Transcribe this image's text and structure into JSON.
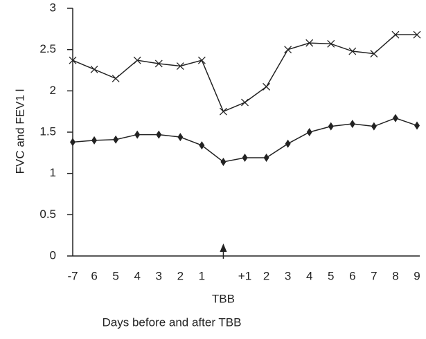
{
  "chart_data": {
    "type": "line",
    "xlabel": "Days before and after TBB",
    "ylabel": "FVC and FEV1 l",
    "categories": [
      "-7",
      "6",
      "5",
      "4",
      "3",
      "2",
      "1",
      "TBB",
      "+1",
      "2",
      "3",
      "4",
      "5",
      "6",
      "7",
      "8",
      "9"
    ],
    "series": [
      {
        "color": "#222222",
        "marker": "x",
        "values": [
          2.37,
          2.26,
          2.15,
          2.37,
          2.33,
          2.3,
          2.37,
          1.75,
          1.86,
          2.05,
          2.5,
          2.58,
          2.57,
          2.48,
          2.45,
          2.68,
          2.68
        ]
      },
      {
        "color": "#222222",
        "marker": "diamond",
        "values": [
          1.38,
          1.4,
          1.41,
          1.47,
          1.47,
          1.44,
          1.34,
          1.14,
          1.19,
          1.19,
          1.36,
          1.5,
          1.57,
          1.6,
          1.57,
          1.67,
          1.58
        ]
      }
    ],
    "ylim": [
      0,
      3
    ],
    "yticks": [
      0,
      0.5,
      1,
      1.5,
      2,
      2.5,
      3
    ],
    "grid": false
  }
}
